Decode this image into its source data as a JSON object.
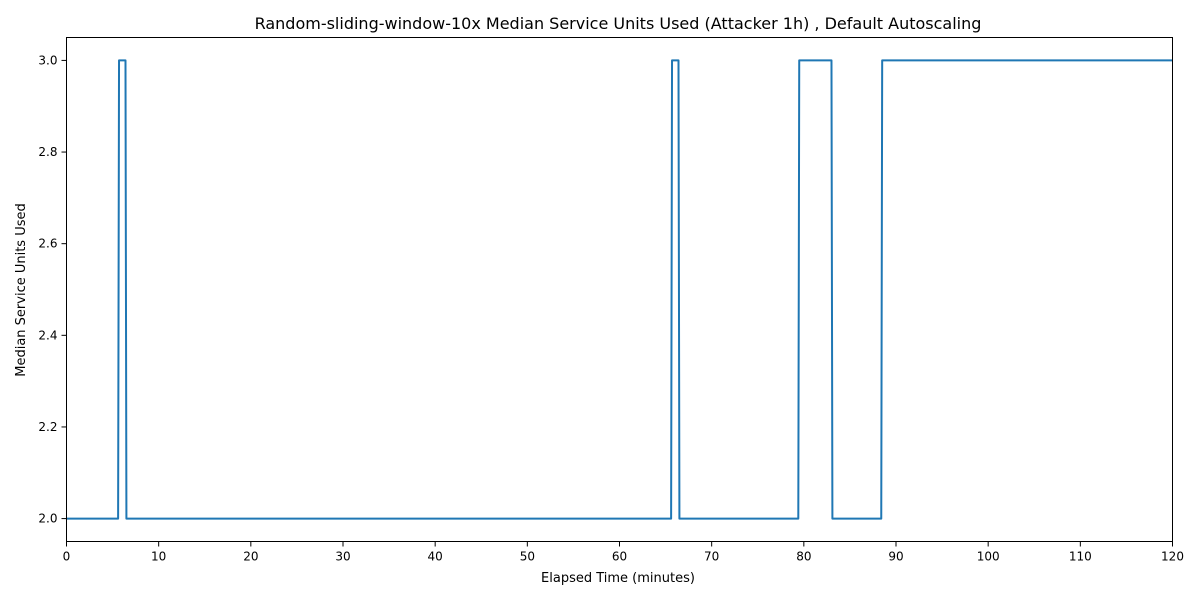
{
  "chart_data": {
    "type": "line",
    "title": "Random-sliding-window-10x Median Service Units Used (Attacker 1h) , Default Autoscaling",
    "xlabel": "Elapsed Time (minutes)",
    "ylabel": "Median Service Units Used",
    "xlim": [
      0,
      120
    ],
    "ylim": [
      1.95,
      3.05
    ],
    "xticks": [
      0,
      10,
      20,
      30,
      40,
      50,
      60,
      70,
      80,
      90,
      100,
      110,
      120
    ],
    "yticks": [
      2.0,
      2.2,
      2.4,
      2.6,
      2.8,
      3.0
    ],
    "grid": false,
    "legend": "none",
    "series": [
      {
        "color": "#1f77b4",
        "points": [
          [
            0,
            2.0
          ],
          [
            5.6,
            2.0
          ],
          [
            5.7,
            3.0
          ],
          [
            6.4,
            3.0
          ],
          [
            6.5,
            2.0
          ],
          [
            65.6,
            2.0
          ],
          [
            65.7,
            3.0
          ],
          [
            66.4,
            3.0
          ],
          [
            66.5,
            2.0
          ],
          [
            79.4,
            2.0
          ],
          [
            79.5,
            3.0
          ],
          [
            83.0,
            3.0
          ],
          [
            83.1,
            2.0
          ],
          [
            88.4,
            2.0
          ],
          [
            88.5,
            3.0
          ],
          [
            120,
            3.0
          ]
        ]
      }
    ]
  }
}
